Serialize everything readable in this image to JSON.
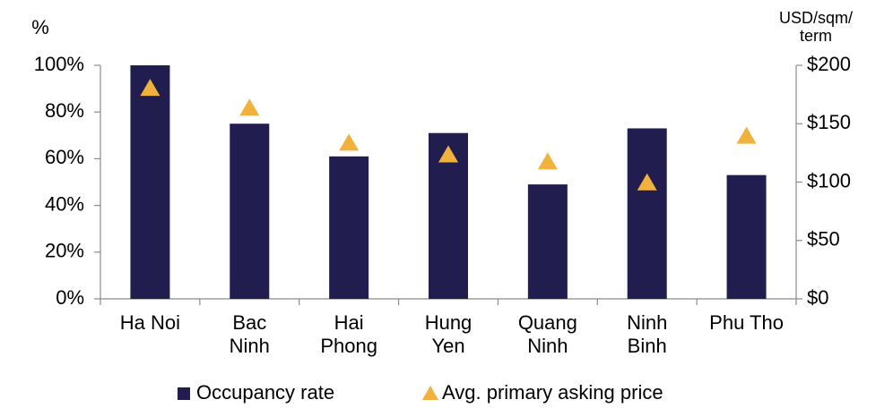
{
  "chart_data": {
    "type": "bar_dual",
    "y_axis_label": "%",
    "y2_axis_label": "USD/sqm/ term",
    "categories": [
      "Ha Noi",
      "Bac Ninh",
      "Hai Phong",
      "Hung Yen",
      "Quang Ninh",
      "Ninh Binh",
      "Phu Tho"
    ],
    "series": [
      {
        "name": "Occupancy rate",
        "color": "#211d4f",
        "marker": "bar",
        "values": [
          100,
          75,
          61,
          71,
          49,
          73,
          53
        ]
      },
      {
        "name": "Avg. primary asking price",
        "color": "#f0b23c",
        "marker": "triangle",
        "axis": "y2",
        "values": [
          180,
          163,
          133,
          123,
          117,
          99,
          139
        ]
      }
    ],
    "ylim": [
      0,
      100
    ],
    "yticks": [
      {
        "value": 0,
        "label": "0%"
      },
      {
        "value": 20,
        "label": "20%"
      },
      {
        "value": 40,
        "label": "40%"
      },
      {
        "value": 60,
        "label": "60%"
      },
      {
        "value": 80,
        "label": "80%"
      },
      {
        "value": 100,
        "label": "100%"
      }
    ],
    "y2lim": [
      0,
      200
    ],
    "y2ticks": [
      {
        "value": 0,
        "label": "$0"
      },
      {
        "value": 50,
        "label": "$50"
      },
      {
        "value": 100,
        "label": "$100"
      },
      {
        "value": 150,
        "label": "$150"
      },
      {
        "value": 200,
        "label": "$200"
      }
    ],
    "grid": false,
    "legend": "bottom"
  }
}
